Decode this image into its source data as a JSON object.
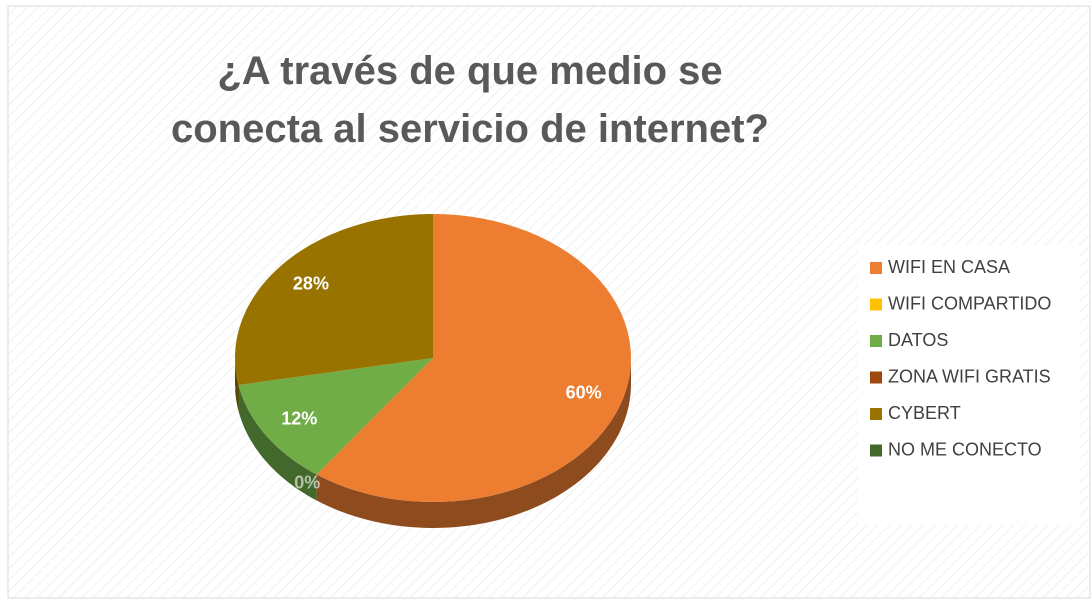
{
  "chart_data": {
    "type": "pie",
    "title": "¿A través de que medio se conecta al servicio de internet?",
    "categories": [
      "WIFI EN CASA",
      "WIFI COMPARTIDO",
      "DATOS",
      "ZONA WIFI GRATIS",
      "CYBERT",
      "NO ME CONECTO"
    ],
    "values": [
      60,
      0,
      12,
      0,
      28,
      0
    ],
    "value_labels": [
      "60%",
      "0%",
      "12%",
      "0%",
      "28%",
      "0%"
    ],
    "colors": [
      "#ED7D31",
      "#FFC000",
      "#70AD47",
      "#9E480E",
      "#997300",
      "#43682B"
    ],
    "legend": "right"
  }
}
